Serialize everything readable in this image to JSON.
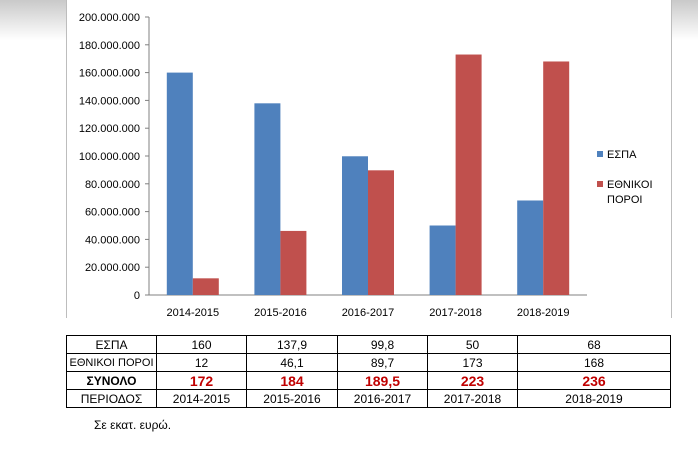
{
  "chart_data": {
    "type": "bar",
    "title": "",
    "xlabel": "",
    "ylabel": "",
    "categories": [
      "2014-2015",
      "2015-2016",
      "2016-2017",
      "2017-2018",
      "2018-2019"
    ],
    "series": [
      {
        "name": "ΕΣΠΑ",
        "values": [
          160000000,
          137900000,
          99800000,
          50000000,
          68000000
        ],
        "color": "#4f81bd"
      },
      {
        "name": "ΕΘΝΙΚΟΙ ΠΟΡΟΙ",
        "values": [
          12000000,
          46100000,
          89700000,
          173000000,
          168000000
        ],
        "color": "#c0504d"
      }
    ],
    "ylim": [
      0,
      200000000
    ],
    "yticks": [
      "0",
      "20.000.000",
      "40.000.000",
      "60.000.000",
      "80.000.000",
      "100.000.000",
      "120.000.000",
      "140.000.000",
      "160.000.000",
      "180.000.000",
      "200.000.000"
    ],
    "grid": false,
    "legend_position": "right",
    "legend_labels": [
      [
        "ΕΣΠΑ"
      ],
      [
        "ΕΘΝΙΚΟΙ",
        "ΠΟΡΟΙ"
      ]
    ]
  },
  "table": {
    "rows": [
      {
        "label": "ΕΣΠΑ",
        "cells": [
          "160",
          "137,9",
          "99,8",
          "50",
          "68"
        ]
      },
      {
        "label": "ΕΘΝΙΚΟΙ ΠΟΡΟΙ",
        "cells": [
          "12",
          "46,1",
          "89,7",
          "173",
          "168"
        ]
      },
      {
        "label": "ΣΥΝΟΛΟ",
        "cells": [
          "172",
          "184",
          "189,5",
          "223",
          "236"
        ]
      },
      {
        "label": "ΠΕΡΙΟΔΟΣ",
        "cells": [
          "2014-2015",
          "2015-2016",
          "2016-2017",
          "2017-2018",
          "2018-2019"
        ]
      }
    ]
  },
  "footnote": "Σε εκατ. ευρώ."
}
